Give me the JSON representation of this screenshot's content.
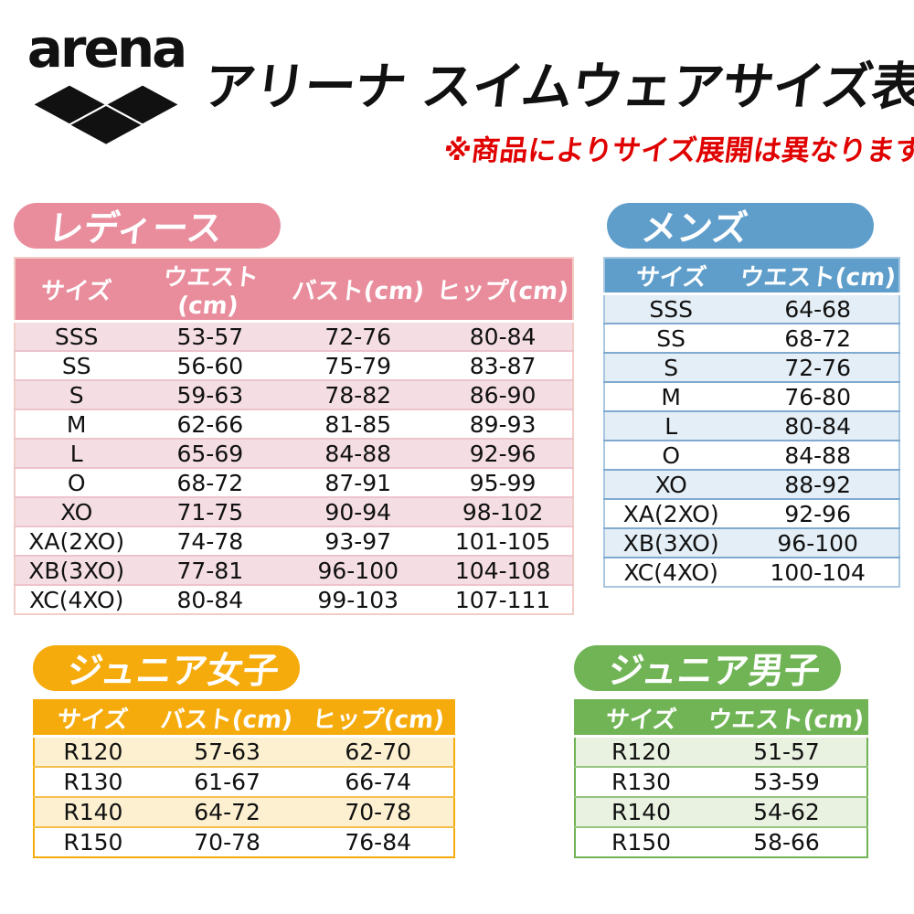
{
  "header": {
    "brand": "arena",
    "title": "アリーナ スイムウェアサイズ表",
    "note": "※商品によりサイズ展開は異なります。",
    "note_color": "#e00000",
    "logo_color": "#111111"
  },
  "tables": [
    {
      "id": "ladies",
      "badge": "レディース",
      "theme": {
        "main": "#e98d9d",
        "light": "#f4dee4",
        "separator": "#edc3cc",
        "border": "#f2cdc5"
      },
      "columns": [
        "サイズ",
        "ウエスト(cm)",
        "バスト(cm)",
        "ヒップ(cm)"
      ],
      "rows": [
        [
          "SSS",
          "53-57",
          "72-76",
          "80-84"
        ],
        [
          "SS",
          "56-60",
          "75-79",
          "83-87"
        ],
        [
          "S",
          "59-63",
          "78-82",
          "86-90"
        ],
        [
          "M",
          "62-66",
          "81-85",
          "89-93"
        ],
        [
          "L",
          "65-69",
          "84-88",
          "92-96"
        ],
        [
          "O",
          "68-72",
          "87-91",
          "95-99"
        ],
        [
          "XO",
          "71-75",
          "90-94",
          "98-102"
        ],
        [
          "XA(2XO)",
          "74-78",
          "93-97",
          "101-105"
        ],
        [
          "XB(3XO)",
          "77-81",
          "96-100",
          "104-108"
        ],
        [
          "XC(4XO)",
          "80-84",
          "99-103",
          "107-111"
        ]
      ]
    },
    {
      "id": "mens",
      "badge": "メンズ",
      "theme": {
        "main": "#5f9ecb",
        "light": "#e4eef6",
        "separator": "#7fa9ce",
        "border": "#a9c7e0"
      },
      "columns": [
        "サイズ",
        "ウエスト(cm)"
      ],
      "rows": [
        [
          "SSS",
          "64-68"
        ],
        [
          "SS",
          "68-72"
        ],
        [
          "S",
          "72-76"
        ],
        [
          "M",
          "76-80"
        ],
        [
          "L",
          "80-84"
        ],
        [
          "O",
          "84-88"
        ],
        [
          "XO",
          "88-92"
        ],
        [
          "XA(2XO)",
          "92-96"
        ],
        [
          "XB(3XO)",
          "96-100"
        ],
        [
          "XC(4XO)",
          "100-104"
        ]
      ]
    },
    {
      "id": "junior-girls",
      "badge": "ジュニア女子",
      "theme": {
        "main": "#f6ab0c",
        "light": "#fcf0d0",
        "separator": "#f4bf51",
        "border": "#f6ab0c"
      },
      "columns": [
        "サイズ",
        "バスト(cm)",
        "ヒップ(cm)"
      ],
      "rows": [
        [
          "R120",
          "57-63",
          "62-70"
        ],
        [
          "R130",
          "61-67",
          "66-74"
        ],
        [
          "R140",
          "64-72",
          "70-78"
        ],
        [
          "R150",
          "70-78",
          "76-84"
        ]
      ]
    },
    {
      "id": "junior-boys",
      "badge": "ジュニア男子",
      "theme": {
        "main": "#70b455",
        "light": "#e9f2e1",
        "separator": "#94c47e",
        "border": "#70b455"
      },
      "columns": [
        "サイズ",
        "ウエスト(cm)"
      ],
      "rows": [
        [
          "R120",
          "51-57"
        ],
        [
          "R130",
          "53-59"
        ],
        [
          "R140",
          "54-62"
        ],
        [
          "R150",
          "58-66"
        ]
      ]
    }
  ]
}
